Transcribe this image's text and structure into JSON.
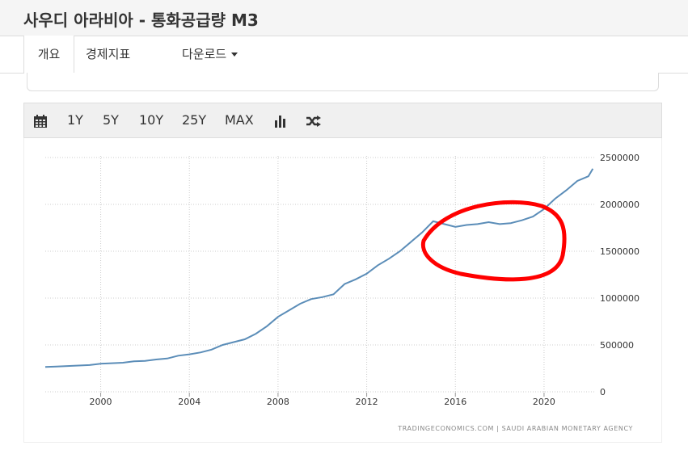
{
  "page": {
    "title": "사우디 아라비아 - 통화공급량 M3"
  },
  "tabs": [
    {
      "label": "개요",
      "active": true
    },
    {
      "label": "경제지표",
      "active": false
    },
    {
      "label": "다운로드",
      "active": false,
      "dropdown": true
    }
  ],
  "toolbar": {
    "calendar_icon": "calendar-icon",
    "ranges": [
      "1Y",
      "5Y",
      "10Y",
      "25Y",
      "MAX"
    ],
    "bar_chart_icon": "bar-chart-icon",
    "shuffle_icon": "shuffle-icon"
  },
  "source": "TRADINGECONOMICS.COM  |  SAUDI ARABIAN MONETARY AGENCY",
  "colors": {
    "line": "#5b8db8",
    "annotation": "#ff0000",
    "grid": "#cccccc"
  },
  "chart_data": {
    "type": "line",
    "title": "",
    "xlabel": "",
    "ylabel": "",
    "xlim": [
      1997.5,
      2022.3
    ],
    "ylim": [
      0,
      2500000
    ],
    "x_ticks": [
      2000,
      2004,
      2008,
      2012,
      2016,
      2020
    ],
    "y_ticks": [
      0,
      500000,
      1000000,
      1500000,
      2000000,
      2500000
    ],
    "y_axis_position": "right",
    "grid": "dotted vertical and horizontal",
    "series": [
      {
        "x": [
          1997.5,
          1998.0,
          1998.5,
          1999.0,
          1999.5,
          2000.0,
          2000.5,
          2001.0,
          2001.5,
          2002.0,
          2002.5,
          2003.0,
          2003.5,
          2004.0,
          2004.5,
          2005.0,
          2005.5,
          2006.0,
          2006.5,
          2007.0,
          2007.5,
          2008.0,
          2008.5,
          2009.0,
          2009.5,
          2010.0,
          2010.5,
          2011.0,
          2011.5,
          2012.0,
          2012.5,
          2013.0,
          2013.5,
          2014.0,
          2014.5,
          2015.0,
          2015.5,
          2016.0,
          2016.5,
          2017.0,
          2017.5,
          2018.0,
          2018.5,
          2019.0,
          2019.5,
          2020.0,
          2020.5,
          2021.0,
          2021.5,
          2022.0,
          2022.2
        ],
        "values": [
          265000,
          270000,
          275000,
          280000,
          285000,
          300000,
          305000,
          310000,
          325000,
          330000,
          345000,
          355000,
          385000,
          400000,
          420000,
          450000,
          500000,
          530000,
          560000,
          620000,
          700000,
          800000,
          870000,
          940000,
          990000,
          1010000,
          1040000,
          1150000,
          1200000,
          1260000,
          1350000,
          1420000,
          1500000,
          1600000,
          1700000,
          1820000,
          1790000,
          1760000,
          1780000,
          1790000,
          1810000,
          1790000,
          1800000,
          1830000,
          1870000,
          1950000,
          2060000,
          2150000,
          2250000,
          2300000,
          2380000
        ]
      }
    ]
  }
}
